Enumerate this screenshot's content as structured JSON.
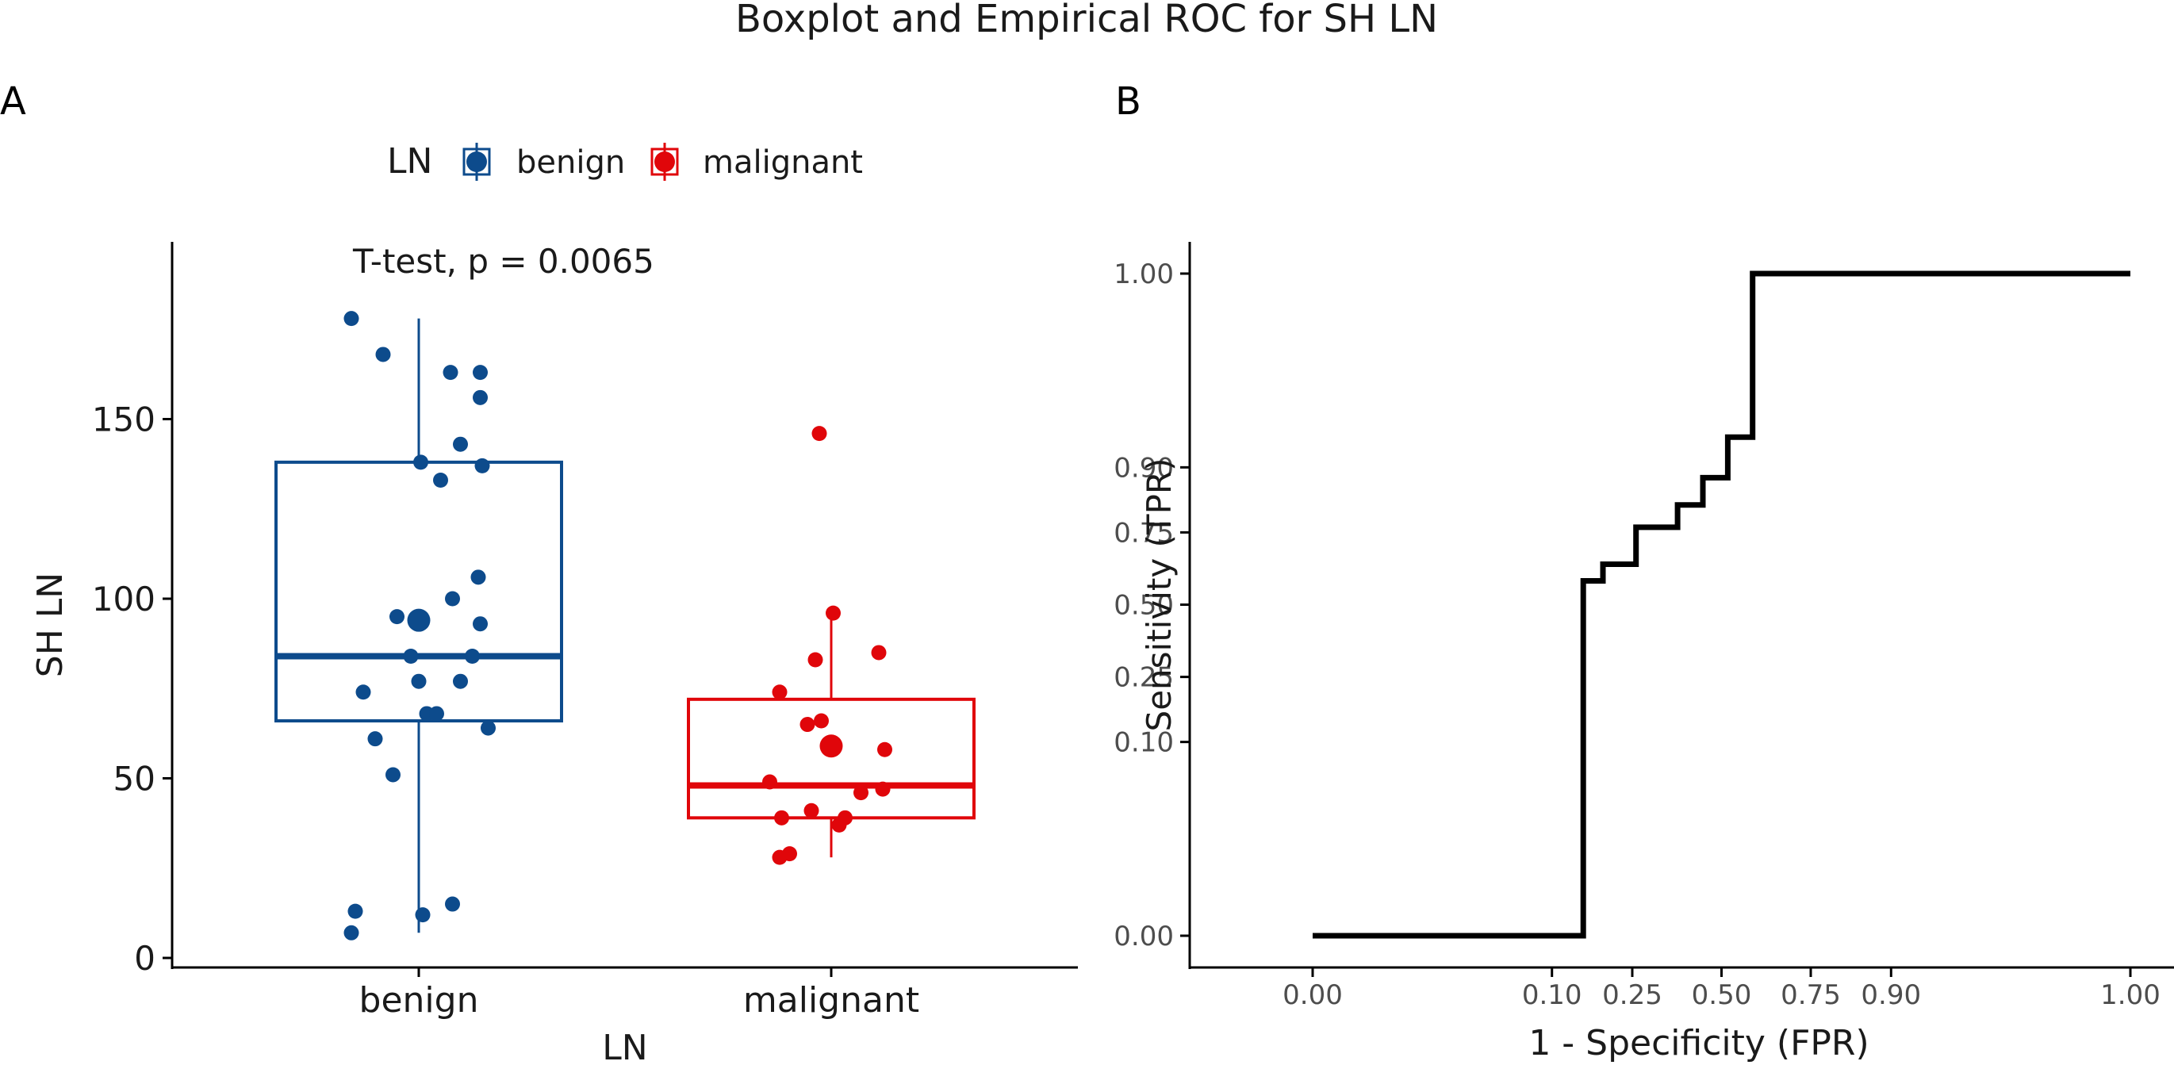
{
  "figure": {
    "title": "Boxplot and Empirical ROC for SH LN"
  },
  "colors": {
    "benign": "#0d4b8c",
    "malignant": "#e0060a",
    "roc": "#000000",
    "axis": "#000000",
    "text": "#1a1a1a"
  },
  "chart_data": [
    {
      "panel": "A",
      "type": "box",
      "title": "",
      "xlabel": "LN",
      "ylabel": "SH LN",
      "categories": [
        "benign",
        "malignant"
      ],
      "ylim": [
        0,
        197
      ],
      "yticks": [
        0,
        50,
        100,
        150
      ],
      "ytick_labels": [
        "0",
        "50",
        "100",
        "150"
      ],
      "legend": {
        "title": "LN",
        "position": "top",
        "entries": [
          "benign",
          "malignant"
        ]
      },
      "annotation": "T-test, p = 0.0065",
      "series": [
        {
          "name": "benign",
          "box": {
            "whisker_low": 7,
            "q1": 66,
            "median": 84,
            "q3": 138,
            "whisker_high": 178
          },
          "mean": 94,
          "points": [
            {
              "x": -0.34,
              "y": 178
            },
            {
              "x": -0.18,
              "y": 168
            },
            {
              "x": 0.16,
              "y": 163
            },
            {
              "x": 0.31,
              "y": 163
            },
            {
              "x": 0.31,
              "y": 156
            },
            {
              "x": 0.21,
              "y": 143
            },
            {
              "x": 0.01,
              "y": 138
            },
            {
              "x": 0.32,
              "y": 137
            },
            {
              "x": 0.11,
              "y": 133
            },
            {
              "x": 0.3,
              "y": 106
            },
            {
              "x": 0.17,
              "y": 100
            },
            {
              "x": -0.11,
              "y": 95
            },
            {
              "x": 0.31,
              "y": 93
            },
            {
              "x": -0.04,
              "y": 84
            },
            {
              "x": 0.27,
              "y": 84
            },
            {
              "x": 0.0,
              "y": 77
            },
            {
              "x": 0.21,
              "y": 77
            },
            {
              "x": -0.28,
              "y": 74
            },
            {
              "x": 0.04,
              "y": 68
            },
            {
              "x": 0.09,
              "y": 68
            },
            {
              "x": 0.35,
              "y": 64
            },
            {
              "x": -0.22,
              "y": 61
            },
            {
              "x": -0.13,
              "y": 51
            },
            {
              "x": 0.17,
              "y": 15
            },
            {
              "x": -0.32,
              "y": 13
            },
            {
              "x": 0.02,
              "y": 12
            },
            {
              "x": -0.34,
              "y": 7
            }
          ]
        },
        {
          "name": "malignant",
          "box": {
            "whisker_low": 28,
            "q1": 39,
            "median": 48,
            "q3": 72,
            "whisker_high": 96
          },
          "mean": 59,
          "points": [
            {
              "x": -0.06,
              "y": 146
            },
            {
              "x": 0.01,
              "y": 96
            },
            {
              "x": 0.24,
              "y": 85
            },
            {
              "x": -0.08,
              "y": 83
            },
            {
              "x": -0.26,
              "y": 74
            },
            {
              "x": -0.05,
              "y": 66
            },
            {
              "x": -0.12,
              "y": 65
            },
            {
              "x": 0.27,
              "y": 58
            },
            {
              "x": -0.31,
              "y": 49
            },
            {
              "x": 0.26,
              "y": 47
            },
            {
              "x": 0.15,
              "y": 46
            },
            {
              "x": -0.1,
              "y": 41
            },
            {
              "x": -0.25,
              "y": 39
            },
            {
              "x": 0.07,
              "y": 39
            },
            {
              "x": 0.04,
              "y": 37
            },
            {
              "x": -0.21,
              "y": 29
            },
            {
              "x": -0.26,
              "y": 28
            }
          ]
        }
      ]
    },
    {
      "panel": "B",
      "type": "line",
      "title": "",
      "xlabel": "1 - Specificity (FPR)",
      "ylabel": "Sensitivity (TPR)",
      "xlim": [
        0,
        1
      ],
      "ylim": [
        0,
        1
      ],
      "xticks": [
        0,
        0.1,
        0.25,
        0.5,
        0.75,
        0.9,
        1
      ],
      "xtick_labels": [
        "0.00",
        "0.10",
        "0.25",
        "0.50",
        "0.75",
        "0.90",
        "1.00"
      ],
      "yticks": [
        0,
        0.1,
        0.25,
        0.5,
        0.75,
        0.9,
        1
      ],
      "ytick_labels": [
        "0.00",
        "0.10",
        "0.25",
        "0.50",
        "0.75",
        "0.90",
        "1.00"
      ],
      "axis_scale": "probit",
      "series": [
        {
          "name": "Empirical ROC",
          "x": [
            0.001,
            0.148,
            0.148,
            0.185,
            0.185,
            0.259,
            0.259,
            0.37,
            0.37,
            0.444,
            0.444,
            0.519,
            0.519,
            0.593,
            0.593,
            0.815,
            0.815,
            0.999
          ],
          "y": [
            0.001,
            0.001,
            0.588,
            0.588,
            0.647,
            0.647,
            0.765,
            0.765,
            0.824,
            0.824,
            0.882,
            0.882,
            0.941,
            0.941,
            0.999,
            0.999,
            0.999,
            0.999
          ]
        }
      ]
    }
  ]
}
